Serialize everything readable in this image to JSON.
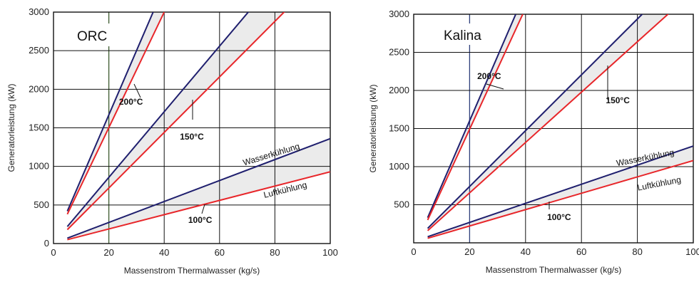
{
  "chart_data": [
    {
      "type": "line",
      "title": "ORC",
      "xlabel": "Massenstrom Thermalwasser (kg/s)",
      "ylabel": "Generatorleistung (kW)",
      "xlim": [
        0,
        100
      ],
      "ylim": [
        0,
        3000
      ],
      "xticks": [
        "0",
        "20",
        "40",
        "60",
        "80",
        "100"
      ],
      "yticks": [
        "0",
        "500",
        "1000",
        "1500",
        "2000",
        "2500",
        "3000"
      ],
      "grid": true,
      "highlight_x": 20,
      "series": [
        {
          "name": "200°C Wasserkühlung",
          "color": "#1f1f6e",
          "x": [
            5,
            36
          ],
          "y": [
            420,
            3000
          ]
        },
        {
          "name": "200°C Luftkühlung",
          "color": "#e8262a",
          "x": [
            5,
            40
          ],
          "y": [
            380,
            3000
          ]
        },
        {
          "name": "150°C Wasserkühlung",
          "color": "#1f1f6e",
          "x": [
            5,
            100
          ],
          "y": [
            220,
            4260
          ]
        },
        {
          "name": "150°C Luftkühlung",
          "color": "#e8262a",
          "x": [
            5,
            100
          ],
          "y": [
            180,
            3600
          ]
        },
        {
          "name": "100°C Wasserkühlung",
          "color": "#1f1f6e",
          "x": [
            5,
            100
          ],
          "y": [
            70,
            1360
          ]
        },
        {
          "name": "100°C Luftkühlung",
          "color": "#e8262a",
          "x": [
            5,
            100
          ],
          "y": [
            50,
            930
          ]
        }
      ],
      "annotations": [
        {
          "text": "200°C",
          "x": 28,
          "y": 1800
        },
        {
          "text": "150°C",
          "x": 50,
          "y": 1350
        },
        {
          "text": "100°C",
          "x": 53,
          "y": 270
        },
        {
          "text": "Wasserkühlung",
          "x": 79,
          "y": 1120
        },
        {
          "text": "Luftkühlung",
          "x": 84,
          "y": 660
        }
      ]
    },
    {
      "type": "line",
      "title": "Kalina",
      "xlabel": "Massenstrom Thermalwasser (kg/s)",
      "ylabel": "Generatorleistung (kW)",
      "xlim": [
        0,
        100
      ],
      "ylim": [
        0,
        3000
      ],
      "xticks": [
        "0",
        "20",
        "40",
        "60",
        "80",
        "100"
      ],
      "yticks": [
        "",
        "500",
        "1000",
        "1500",
        "2000",
        "2500",
        "3000"
      ],
      "grid": true,
      "highlight_x": 20,
      "series": [
        {
          "name": "200°C Wasserkühlung",
          "color": "#1f1f6e",
          "x": [
            5,
            36.5
          ],
          "y": [
            330,
            3000
          ]
        },
        {
          "name": "200°C Luftkühlung",
          "color": "#e8262a",
          "x": [
            5,
            39
          ],
          "y": [
            300,
            3000
          ]
        },
        {
          "name": "150°C Wasserkühlung",
          "color": "#1f1f6e",
          "x": [
            5,
            100
          ],
          "y": [
            190,
            3670
          ]
        },
        {
          "name": "150°C Luftkühlung",
          "color": "#e8262a",
          "x": [
            5,
            100
          ],
          "y": [
            160,
            3300
          ]
        },
        {
          "name": "100°C Wasserkühlung",
          "color": "#1f1f6e",
          "x": [
            5,
            100
          ],
          "y": [
            80,
            1270
          ]
        },
        {
          "name": "100°C Luftkühlung",
          "color": "#e8262a",
          "x": [
            5,
            100
          ],
          "y": [
            60,
            1080
          ]
        }
      ],
      "annotations": [
        {
          "text": "200°C",
          "x": 27,
          "y": 2150
        },
        {
          "text": "150°C",
          "x": 73,
          "y": 1830
        },
        {
          "text": "100°C",
          "x": 52,
          "y": 300
        },
        {
          "text": "Wasserkühlung",
          "x": 83,
          "y": 1080
        },
        {
          "text": "Luftkühlung",
          "x": 88,
          "y": 740
        }
      ]
    }
  ]
}
